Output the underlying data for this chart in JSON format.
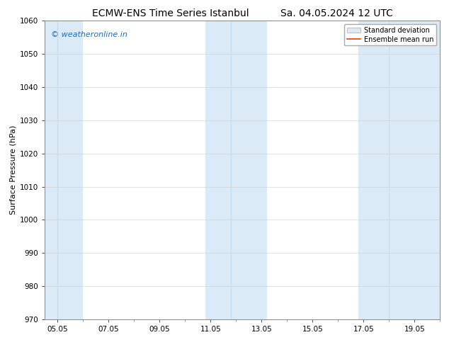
{
  "title_left": "ECMW-ENS Time Series Istanbul",
  "title_right": "Sa. 04.05.2024 12 UTC",
  "ylabel": "Surface Pressure (hPa)",
  "ylim": [
    970,
    1060
  ],
  "yticks": [
    970,
    980,
    990,
    1000,
    1010,
    1020,
    1030,
    1040,
    1050,
    1060
  ],
  "xlabel_dates": [
    "05.05",
    "07.05",
    "09.05",
    "11.05",
    "13.05",
    "15.05",
    "17.05",
    "19.05"
  ],
  "x_tick_pos": [
    0,
    2,
    4,
    6,
    8,
    10,
    12,
    14
  ],
  "x_min": -0.5,
  "x_max": 15.0,
  "shaded_bands": [
    {
      "x_start": -0.5,
      "x_end": 1.0
    },
    {
      "x_start": 5.8,
      "x_end": 8.2
    },
    {
      "x_start": 11.8,
      "x_end": 15.0
    }
  ],
  "std_dev_band_color": "#daeaf7",
  "ensemble_mean_color": "#ff3300",
  "watermark_text": "© weatheronline.in",
  "watermark_color": "#1a6fbf",
  "watermark_fontsize": 8,
  "legend_std_label": "Standard deviation",
  "legend_mean_label": "Ensemble mean run",
  "background_color": "#ffffff",
  "title_fontsize": 10,
  "axis_label_fontsize": 8,
  "tick_fontsize": 7.5
}
